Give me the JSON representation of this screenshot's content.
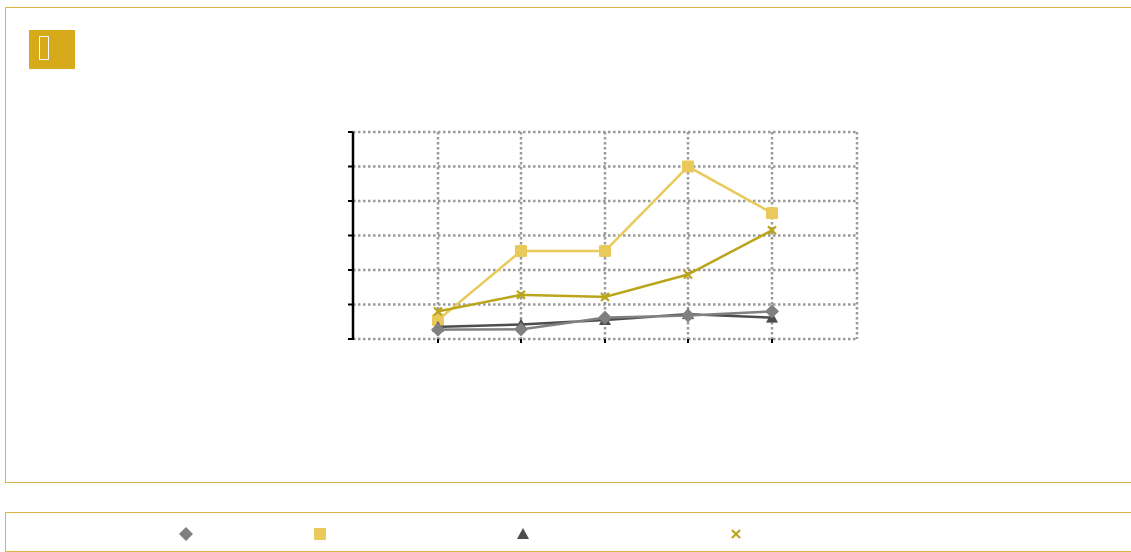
{
  "badge": {
    "icon": "page-icon",
    "color": "#d6aa1a"
  },
  "chart_data": {
    "type": "line",
    "title": "",
    "xlabel": "",
    "ylabel": "",
    "categories": [
      "",
      "",
      "",
      "",
      ""
    ],
    "ylim": [
      0,
      6
    ],
    "y_ticks": [
      0,
      1,
      2,
      3,
      4,
      5,
      6
    ],
    "y_tick_labels": [
      "",
      "",
      "",
      "",
      "",
      "",
      ""
    ],
    "grid": true,
    "legend_position": "bottom",
    "series": [
      {
        "color": "#808080",
        "marker": "diamond",
        "values": [
          0.27,
          0.28,
          0.62,
          0.68,
          0.8
        ]
      },
      {
        "color": "#e8c95a",
        "marker": "square",
        "values": [
          0.55,
          2.55,
          2.55,
          5.0,
          3.65
        ]
      },
      {
        "color": "#4d4d4d",
        "marker": "triangle",
        "values": [
          0.35,
          0.42,
          0.55,
          0.72,
          0.62
        ]
      },
      {
        "color": "#bba51a",
        "marker": "x",
        "values": [
          0.8,
          1.28,
          1.22,
          1.87,
          3.15
        ]
      }
    ]
  }
}
